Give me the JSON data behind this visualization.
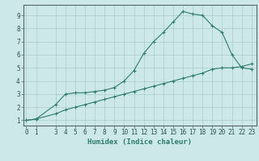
{
  "xlabel": "Humidex (Indice chaleur)",
  "bg_color": "#cce8e8",
  "grid_color": "#aacccc",
  "line_color": "#2e7b6e",
  "curve1_x": [
    0,
    1,
    3,
    4,
    5,
    6,
    7,
    8,
    9,
    10,
    11,
    12,
    13,
    14,
    15,
    16,
    17,
    18,
    19,
    20,
    21,
    22,
    23
  ],
  "curve1_y": [
    1.0,
    1.1,
    2.2,
    3.0,
    3.1,
    3.1,
    3.2,
    3.3,
    3.5,
    4.0,
    4.8,
    6.1,
    7.0,
    7.7,
    8.5,
    9.3,
    9.1,
    9.0,
    8.2,
    7.7,
    6.0,
    5.0,
    4.9
  ],
  "curve2_x": [
    0,
    1,
    3,
    4,
    5,
    6,
    7,
    8,
    9,
    10,
    11,
    12,
    13,
    14,
    15,
    16,
    17,
    18,
    19,
    20,
    21,
    22,
    23
  ],
  "curve2_y": [
    1.0,
    1.1,
    1.5,
    1.8,
    2.0,
    2.2,
    2.4,
    2.6,
    2.8,
    3.0,
    3.2,
    3.4,
    3.6,
    3.8,
    4.0,
    4.2,
    4.4,
    4.6,
    4.9,
    5.0,
    5.0,
    5.1,
    5.3
  ],
  "ylim": [
    0.6,
    9.8
  ],
  "xlim": [
    -0.3,
    23.5
  ],
  "xticks": [
    0,
    1,
    3,
    4,
    5,
    6,
    7,
    8,
    9,
    10,
    11,
    12,
    13,
    14,
    15,
    16,
    17,
    18,
    19,
    20,
    21,
    22,
    23
  ],
  "yticks": [
    1,
    2,
    3,
    4,
    5,
    6,
    7,
    8,
    9
  ],
  "axis_fontsize": 6.5,
  "tick_fontsize": 5.5
}
